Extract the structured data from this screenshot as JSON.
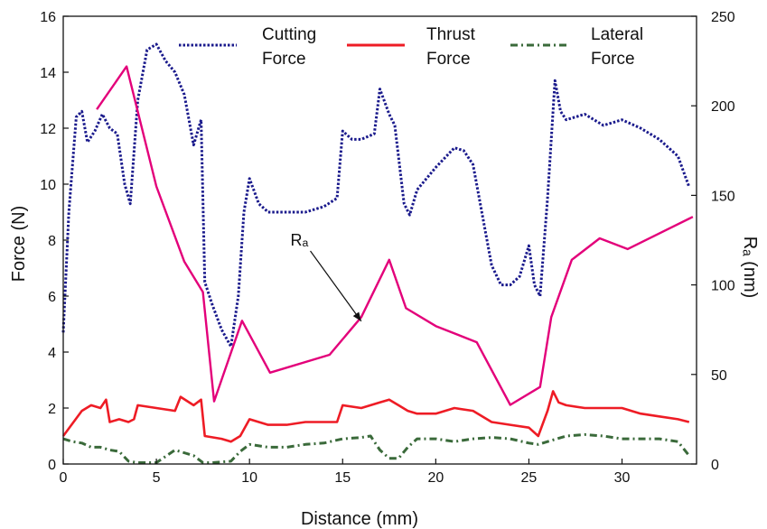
{
  "chart_data": {
    "type": "line",
    "xlabel": "Distance (mm)",
    "ylabel_left": "Force  (N)",
    "ylabel_right": "Rₐ (nm)",
    "xlim": [
      0,
      34
    ],
    "ylim_left": [
      0,
      16
    ],
    "ylim_right": [
      0,
      250
    ],
    "xticks": [
      "0",
      "5",
      "10",
      "15",
      "20",
      "25",
      "30"
    ],
    "yticks_left": [
      "0",
      "2",
      "4",
      "6",
      "8",
      "10",
      "12",
      "14",
      "16"
    ],
    "yticks_right": [
      "0",
      "50",
      "100",
      "150",
      "200",
      "250"
    ],
    "legend": [
      {
        "label_lines": [
          "Cutting",
          "Force"
        ],
        "color": "#1a1a8c",
        "style": "dotted"
      },
      {
        "label_lines": [
          "Thrust",
          "Force"
        ],
        "color": "#ee1c25",
        "style": "solid"
      },
      {
        "label_lines": [
          "Lateral",
          "Force"
        ],
        "color": "#3a6a3a",
        "style": "dashdot"
      }
    ],
    "annotation": {
      "text": "Rₐ",
      "x": 12.2,
      "y": 8.0,
      "arrow_to": [
        16.0,
        5.1
      ]
    },
    "series": [
      {
        "name": "Cutting Force",
        "axis": "left",
        "color": "#1a1a8c",
        "style": "dotted",
        "x": [
          0,
          0.3,
          0.7,
          1.0,
          1.3,
          1.7,
          2.1,
          2.5,
          2.9,
          3.3,
          3.6,
          4.0,
          4.5,
          5.0,
          5.5,
          6.0,
          6.5,
          7.0,
          7.4,
          7.6,
          8.0,
          8.5,
          9.0,
          9.4,
          9.7,
          10.0,
          10.5,
          11.0,
          12.0,
          13.0,
          14.0,
          14.7,
          15.0,
          15.5,
          16.0,
          16.7,
          17.0,
          17.5,
          17.8,
          18.3,
          18.6,
          19.0,
          20.0,
          21.0,
          21.5,
          22.0,
          22.5,
          23.0,
          23.5,
          24.0,
          24.5,
          25.0,
          25.3,
          25.6,
          26.0,
          26.4,
          26.7,
          27.0,
          28.0,
          29.0,
          30.0,
          31.0,
          32.0,
          33.0,
          33.6
        ],
        "y": [
          4.7,
          9.0,
          12.4,
          12.6,
          11.5,
          11.9,
          12.5,
          12.0,
          11.8,
          10.0,
          9.3,
          13.0,
          14.8,
          15.0,
          14.4,
          14.0,
          13.2,
          11.4,
          12.3,
          6.5,
          5.7,
          4.8,
          4.2,
          6.0,
          9.0,
          10.2,
          9.3,
          9.0,
          9.0,
          9.0,
          9.2,
          9.5,
          11.9,
          11.6,
          11.6,
          11.8,
          13.4,
          12.5,
          12.1,
          9.3,
          8.9,
          9.8,
          10.6,
          11.3,
          11.2,
          10.7,
          8.9,
          7.1,
          6.4,
          6.4,
          6.7,
          7.8,
          6.4,
          6.0,
          9.5,
          13.7,
          12.6,
          12.3,
          12.5,
          12.1,
          12.3,
          12.0,
          11.6,
          11.0,
          9.9
        ]
      },
      {
        "name": "Thrust Force",
        "axis": "left",
        "color": "#ee1c25",
        "style": "solid",
        "x": [
          0,
          1.0,
          1.5,
          2.0,
          2.3,
          2.5,
          3.0,
          3.5,
          3.8,
          4.0,
          5.0,
          6.0,
          6.3,
          7.0,
          7.4,
          7.6,
          8.5,
          9.0,
          9.5,
          10.0,
          11.0,
          12.0,
          13.0,
          14.0,
          14.7,
          15.0,
          16.0,
          17.0,
          17.5,
          18.0,
          18.5,
          19.0,
          20.0,
          21.0,
          22.0,
          23.0,
          24.0,
          25.0,
          25.5,
          26.0,
          26.3,
          26.6,
          27.0,
          28.0,
          29.0,
          30.0,
          31.0,
          32.0,
          33.0,
          33.6
        ],
        "y": [
          1.0,
          1.9,
          2.1,
          2.0,
          2.3,
          1.5,
          1.6,
          1.5,
          1.6,
          2.1,
          2.0,
          1.9,
          2.4,
          2.1,
          2.3,
          1.0,
          0.9,
          0.8,
          1.0,
          1.6,
          1.4,
          1.4,
          1.5,
          1.5,
          1.5,
          2.1,
          2.0,
          2.2,
          2.3,
          2.1,
          1.9,
          1.8,
          1.8,
          2.0,
          1.9,
          1.5,
          1.4,
          1.3,
          1.0,
          1.9,
          2.6,
          2.2,
          2.1,
          2.0,
          2.0,
          2.0,
          1.8,
          1.7,
          1.6,
          1.5
        ]
      },
      {
        "name": "Lateral Force",
        "axis": "left",
        "color": "#3a6a3a",
        "style": "dashdot",
        "x": [
          0,
          0.5,
          1.0,
          1.5,
          2.0,
          2.5,
          3.0,
          3.5,
          4.0,
          5.0,
          6.0,
          7.0,
          7.5,
          8.0,
          9.0,
          9.5,
          10.0,
          11.0,
          12.0,
          13.0,
          14.0,
          15.0,
          16.0,
          16.5,
          17.0,
          17.5,
          18.0,
          18.5,
          19.0,
          20.0,
          21.0,
          22.0,
          23.0,
          24.0,
          25.0,
          25.5,
          26.0,
          27.0,
          28.0,
          29.0,
          30.0,
          31.0,
          32.0,
          33.0,
          33.6
        ],
        "y": [
          0.9,
          0.8,
          0.75,
          0.6,
          0.6,
          0.5,
          0.45,
          0.1,
          0.05,
          0.05,
          0.5,
          0.3,
          0.05,
          0.05,
          0.1,
          0.45,
          0.7,
          0.6,
          0.6,
          0.7,
          0.75,
          0.9,
          0.95,
          1.0,
          0.5,
          0.2,
          0.2,
          0.6,
          0.9,
          0.9,
          0.8,
          0.9,
          0.95,
          0.9,
          0.75,
          0.7,
          0.8,
          1.0,
          1.05,
          1.0,
          0.9,
          0.9,
          0.9,
          0.8,
          0.3
        ]
      },
      {
        "name": "Rₐ",
        "axis": "right",
        "color": "#e3007a",
        "style": "solid",
        "x": [
          1.8,
          3.4,
          5.0,
          6.5,
          7.5,
          8.1,
          9.6,
          11.1,
          14.3,
          16.0,
          17.5,
          18.4,
          20.0,
          22.2,
          24.0,
          25.6,
          26.2,
          27.3,
          28.8,
          30.3,
          33.8
        ],
        "y": [
          198,
          222,
          155,
          113,
          96,
          35,
          80,
          51,
          61,
          82,
          114,
          87,
          77,
          68,
          33,
          43,
          82,
          114,
          126,
          120,
          138
        ]
      }
    ]
  }
}
